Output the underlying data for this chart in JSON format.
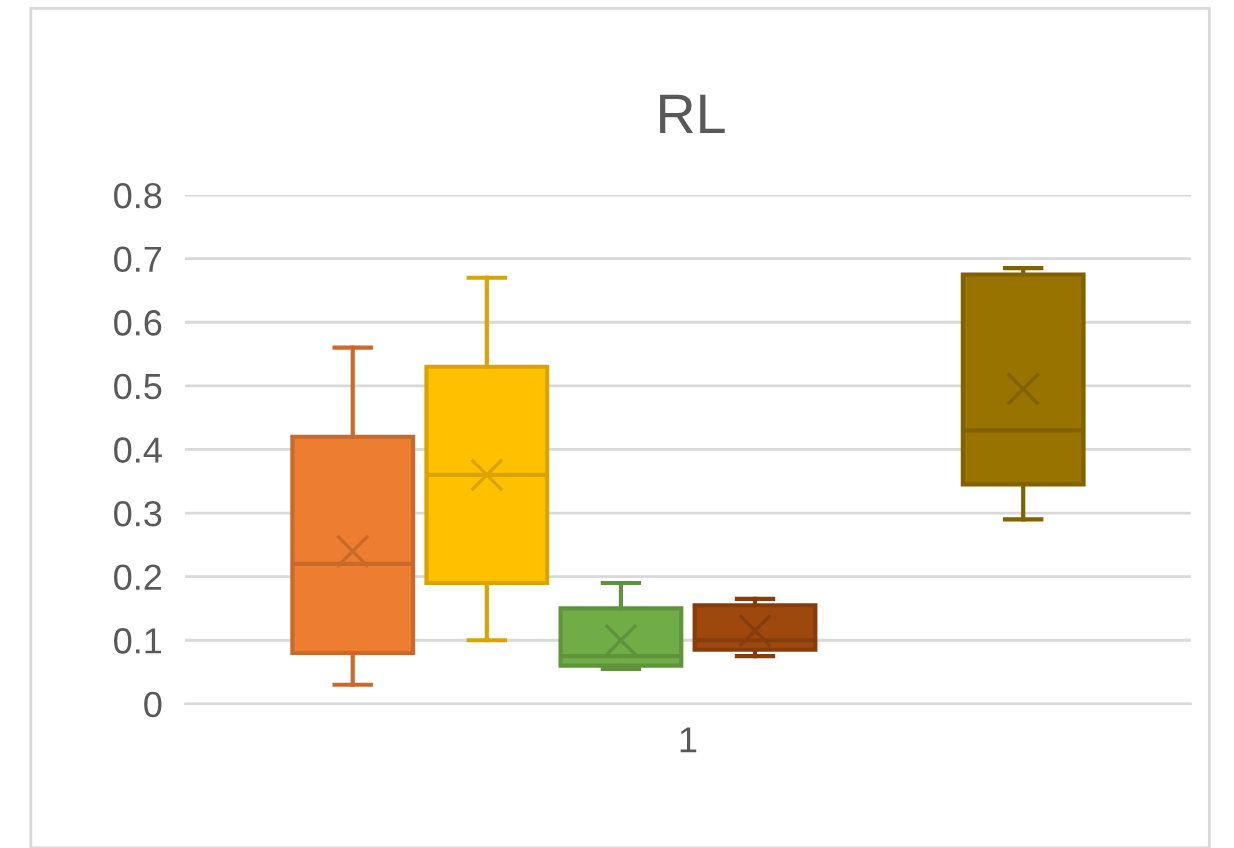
{
  "chart_data": {
    "type": "box",
    "title": "RL",
    "categories": [
      "1"
    ],
    "ylim": [
      0,
      0.8
    ],
    "yticks": [
      0,
      0.1,
      0.2,
      0.3,
      0.4,
      0.5,
      0.6,
      0.7,
      0.8
    ],
    "grid": "y",
    "legend": false,
    "series": [
      {
        "color": "#ed7d31",
        "boxes": [
          {
            "low": 0.03,
            "q1": 0.08,
            "median": 0.22,
            "q3": 0.42,
            "high": 0.56,
            "mean": 0.24
          }
        ]
      },
      {
        "color": "#ffc000",
        "boxes": [
          {
            "low": 0.1,
            "q1": 0.19,
            "median": 0.36,
            "q3": 0.53,
            "high": 0.67,
            "mean": 0.36
          }
        ]
      },
      {
        "color": "#70ad47",
        "boxes": [
          {
            "low": 0.055,
            "q1": 0.06,
            "median": 0.075,
            "q3": 0.15,
            "high": 0.19,
            "mean": 0.1
          }
        ]
      },
      {
        "color": "#9e480e",
        "boxes": [
          {
            "low": 0.075,
            "q1": 0.085,
            "median": 0.1,
            "q3": 0.155,
            "high": 0.165,
            "mean": 0.115
          }
        ]
      },
      {
        "color": "#264478",
        "boxes": [
          null
        ]
      },
      {
        "color": "#997300",
        "boxes": [
          {
            "low": 0.29,
            "q1": 0.345,
            "median": 0.43,
            "q3": 0.675,
            "high": 0.685,
            "mean": 0.495
          }
        ]
      }
    ]
  }
}
